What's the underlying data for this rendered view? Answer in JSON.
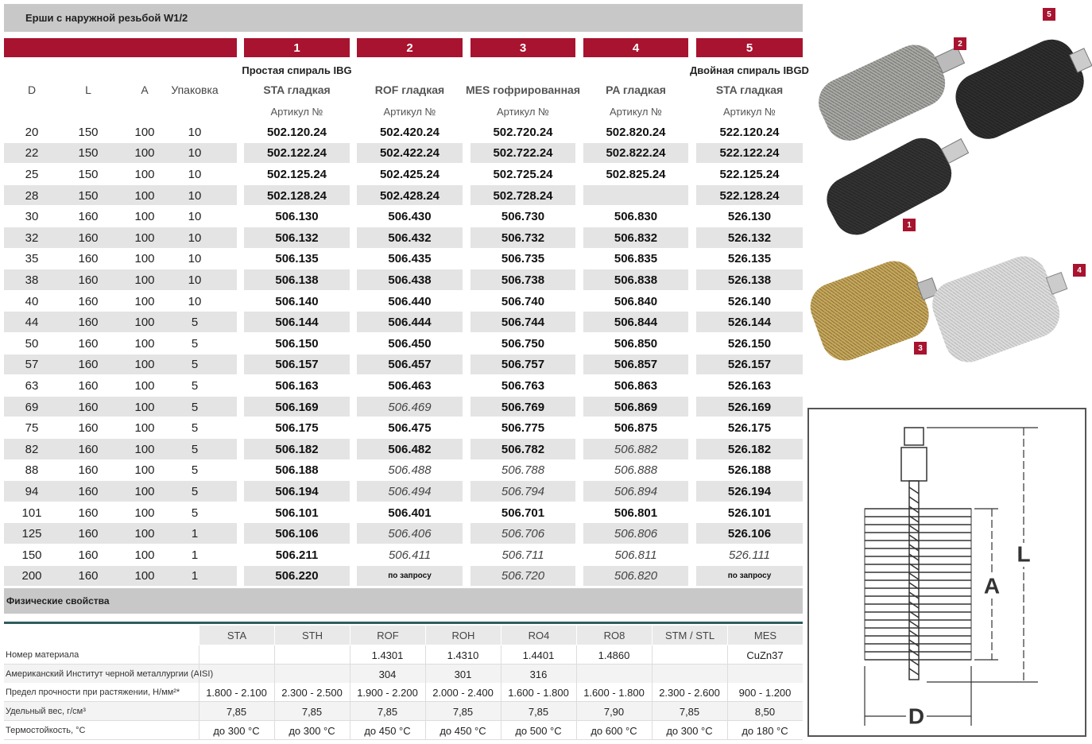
{
  "header": {
    "title": "Ерши с наружной резьбой  W1/2"
  },
  "table": {
    "left_headers": [
      "D",
      "L",
      "A",
      "Упаковка"
    ],
    "column_numbers": [
      "1",
      "2",
      "3",
      "4",
      "5"
    ],
    "group_labels": [
      "Простая спираль IBG",
      null,
      null,
      null,
      "Двойная спираль IBGD"
    ],
    "types": [
      "STA гладкая",
      "ROF гладкая",
      "MES гофрированная",
      "PA гладкая",
      "STA гладкая"
    ],
    "article_label": "Артикул №",
    "rows": [
      {
        "d": "20",
        "l": "150",
        "a": "100",
        "pack": "10",
        "articles": [
          "502.120.24",
          "502.420.24",
          "502.720.24",
          "502.820.24",
          "522.120.24"
        ],
        "italic": []
      },
      {
        "d": "22",
        "l": "150",
        "a": "100",
        "pack": "10",
        "articles": [
          "502.122.24",
          "502.422.24",
          "502.722.24",
          "502.822.24",
          "522.122.24"
        ],
        "italic": []
      },
      {
        "d": "25",
        "l": "150",
        "a": "100",
        "pack": "10",
        "articles": [
          "502.125.24",
          "502.425.24",
          "502.725.24",
          "502.825.24",
          "522.125.24"
        ],
        "italic": []
      },
      {
        "d": "28",
        "l": "150",
        "a": "100",
        "pack": "10",
        "articles": [
          "502.128.24",
          "502.428.24",
          "502.728.24",
          null,
          "522.128.24"
        ],
        "italic": []
      },
      {
        "d": "30",
        "l": "160",
        "a": "100",
        "pack": "10",
        "articles": [
          "506.130",
          "506.430",
          "506.730",
          "506.830",
          "526.130"
        ],
        "italic": []
      },
      {
        "d": "32",
        "l": "160",
        "a": "100",
        "pack": "10",
        "articles": [
          "506.132",
          "506.432",
          "506.732",
          "506.832",
          "526.132"
        ],
        "italic": []
      },
      {
        "d": "35",
        "l": "160",
        "a": "100",
        "pack": "10",
        "articles": [
          "506.135",
          "506.435",
          "506.735",
          "506.835",
          "526.135"
        ],
        "italic": []
      },
      {
        "d": "38",
        "l": "160",
        "a": "100",
        "pack": "10",
        "articles": [
          "506.138",
          "506.438",
          "506.738",
          "506.838",
          "526.138"
        ],
        "italic": []
      },
      {
        "d": "40",
        "l": "160",
        "a": "100",
        "pack": "10",
        "articles": [
          "506.140",
          "506.440",
          "506.740",
          "506.840",
          "526.140"
        ],
        "italic": []
      },
      {
        "d": "44",
        "l": "160",
        "a": "100",
        "pack": "5",
        "articles": [
          "506.144",
          "506.444",
          "506.744",
          "506.844",
          "526.144"
        ],
        "italic": []
      },
      {
        "d": "50",
        "l": "160",
        "a": "100",
        "pack": "5",
        "articles": [
          "506.150",
          "506.450",
          "506.750",
          "506.850",
          "526.150"
        ],
        "italic": []
      },
      {
        "d": "57",
        "l": "160",
        "a": "100",
        "pack": "5",
        "articles": [
          "506.157",
          "506.457",
          "506.757",
          "506.857",
          "526.157"
        ],
        "italic": []
      },
      {
        "d": "63",
        "l": "160",
        "a": "100",
        "pack": "5",
        "articles": [
          "506.163",
          "506.463",
          "506.763",
          "506.863",
          "526.163"
        ],
        "italic": []
      },
      {
        "d": "69",
        "l": "160",
        "a": "100",
        "pack": "5",
        "articles": [
          "506.169",
          "506.469",
          "506.769",
          "506.869",
          "526.169"
        ],
        "italic": [
          1
        ]
      },
      {
        "d": "75",
        "l": "160",
        "a": "100",
        "pack": "5",
        "articles": [
          "506.175",
          "506.475",
          "506.775",
          "506.875",
          "526.175"
        ],
        "italic": []
      },
      {
        "d": "82",
        "l": "160",
        "a": "100",
        "pack": "5",
        "articles": [
          "506.182",
          "506.482",
          "506.782",
          "506.882",
          "526.182"
        ],
        "italic": [
          3
        ]
      },
      {
        "d": "88",
        "l": "160",
        "a": "100",
        "pack": "5",
        "articles": [
          "506.188",
          "506.488",
          "506.788",
          "506.888",
          "526.188"
        ],
        "italic": [
          1,
          2,
          3
        ]
      },
      {
        "d": "94",
        "l": "160",
        "a": "100",
        "pack": "5",
        "articles": [
          "506.194",
          "506.494",
          "506.794",
          "506.894",
          "526.194"
        ],
        "italic": [
          1,
          2,
          3
        ]
      },
      {
        "d": "101",
        "l": "160",
        "a": "100",
        "pack": "5",
        "articles": [
          "506.101",
          "506.401",
          "506.701",
          "506.801",
          "526.101"
        ],
        "italic": []
      },
      {
        "d": "125",
        "l": "160",
        "a": "100",
        "pack": "1",
        "articles": [
          "506.106",
          "506.406",
          "506.706",
          "506.806",
          "526.106"
        ],
        "italic": [
          1,
          2,
          3
        ]
      },
      {
        "d": "150",
        "l": "160",
        "a": "100",
        "pack": "1",
        "articles": [
          "506.211",
          "506.411",
          "506.711",
          "506.811",
          "526.111"
        ],
        "italic": [
          1,
          2,
          3,
          4
        ]
      },
      {
        "d": "200",
        "l": "160",
        "a": "100",
        "pack": "1",
        "articles": [
          "506.220",
          "по запросу",
          "506.720",
          "506.820",
          "по запросу"
        ],
        "italic": [
          2,
          3
        ],
        "small": [
          1,
          4
        ]
      }
    ]
  },
  "properties": {
    "title": "Физические свойства",
    "columns": [
      "STA",
      "STH",
      "ROF",
      "ROH",
      "RO4",
      "RO8",
      "STM / STL",
      "MES"
    ],
    "rows": [
      {
        "label": "Номер материала",
        "values": [
          null,
          null,
          "1.4301",
          "1.4310",
          "1.4401",
          "1.4860",
          null,
          "CuZn37"
        ]
      },
      {
        "label": "Американский Институт черной металлургии (AISI)",
        "values": [
          null,
          null,
          "304",
          "301",
          "316",
          null,
          null,
          null
        ]
      },
      {
        "label": "Предел прочности при растяжении, Н/мм²*",
        "values": [
          "1.800 - 2.100",
          "2.300 - 2.500",
          "1.900 - 2.200",
          "2.000 - 2.400",
          "1.600 - 1.800",
          "1.600 - 1.800",
          "2.300 - 2.600",
          "900 - 1.200"
        ]
      },
      {
        "label": "Удельный вес, г/см³",
        "values": [
          "7,85",
          "7,85",
          "7,85",
          "7,85",
          "7,85",
          "7,90",
          "7,85",
          "8,50"
        ]
      },
      {
        "label": "Термостойкость, °C",
        "values": [
          "до 300 °C",
          "до 300 °C",
          "до 450 °C",
          "до 450 °C",
          "до 500 °C",
          "до 600 °C",
          "до 300 °C",
          "до 180 °C"
        ]
      }
    ]
  },
  "photos": {
    "labels": [
      "1",
      "2",
      "3",
      "4",
      "5"
    ]
  },
  "diagram": {
    "labels": [
      "L",
      "A",
      "D"
    ]
  }
}
